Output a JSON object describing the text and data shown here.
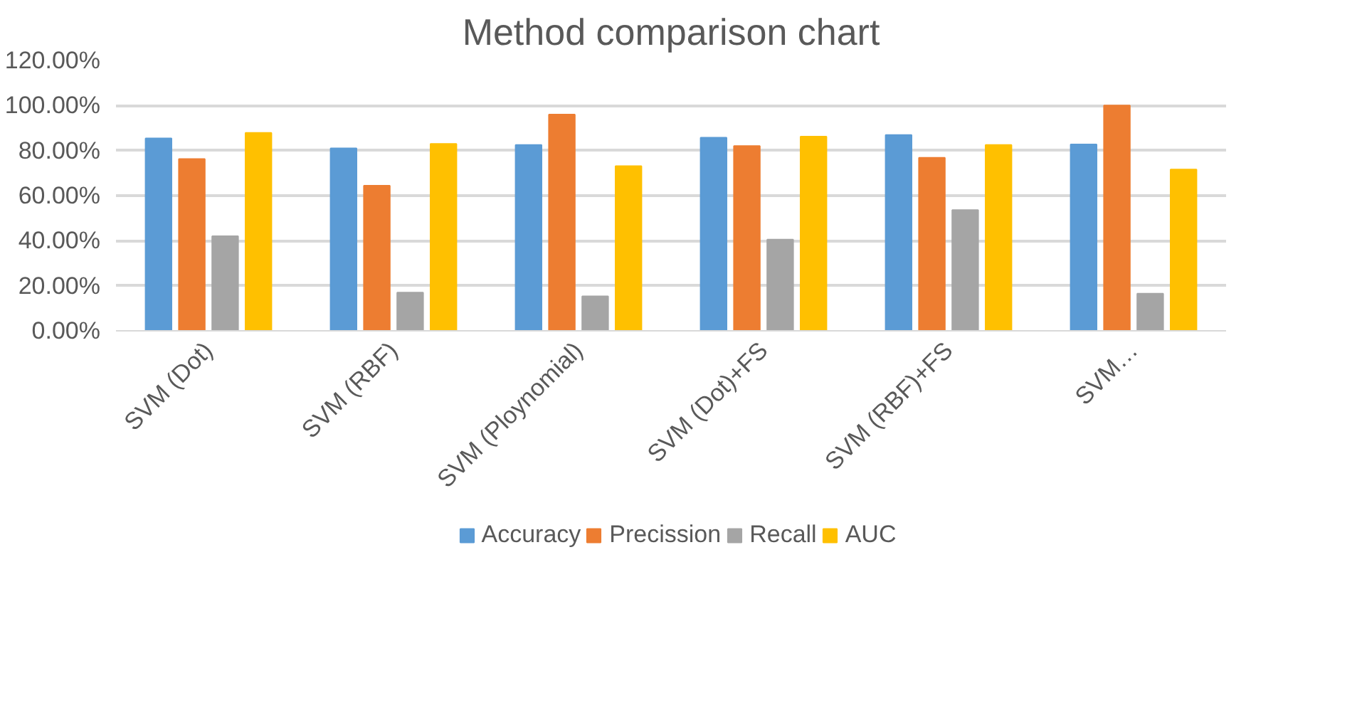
{
  "chart_data": {
    "type": "bar",
    "title": "Method comparison chart",
    "categories": [
      "SVM (Dot)",
      "SVM (RBF)",
      "SVM (Ploynomial)",
      "SVM (Dot)+FS",
      "SVM (RBF)+FS",
      "SVM…"
    ],
    "series": [
      {
        "name": "Accuracy",
        "color": "#5b9bd5",
        "values": [
          85.4,
          81,
          82.5,
          85.7,
          86.9,
          82.7
        ]
      },
      {
        "name": "Precission",
        "color": "#ed7d31",
        "values": [
          76.3,
          64.4,
          96,
          82,
          76.8,
          100
        ]
      },
      {
        "name": "Recall",
        "color": "#a5a5a5",
        "values": [
          42,
          17,
          15.3,
          40.5,
          53.6,
          16.5
        ]
      },
      {
        "name": "AUC",
        "color": "#ffc000",
        "values": [
          87.9,
          83,
          73.1,
          86.2,
          82.5,
          71.6
        ]
      }
    ],
    "ylim": [
      0,
      120
    ],
    "yticks": [
      {
        "value": 0,
        "label": "0.00%"
      },
      {
        "value": 20,
        "label": "20.00%"
      },
      {
        "value": 40,
        "label": "40.00%"
      },
      {
        "value": 60,
        "label": "60.00%"
      },
      {
        "value": 80,
        "label": "80.00%"
      },
      {
        "value": 100,
        "label": "100.00%"
      },
      {
        "value": 120,
        "label": "120.00%"
      }
    ],
    "grid": "y",
    "legend": "bottom"
  }
}
